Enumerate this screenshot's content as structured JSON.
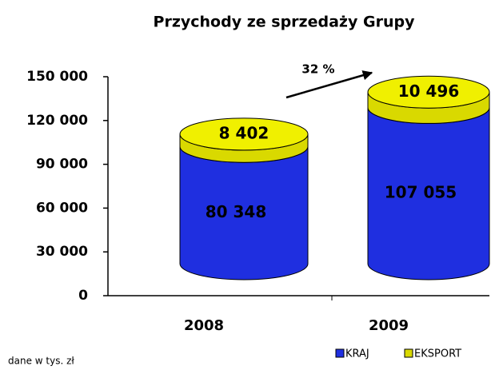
{
  "chart_data": {
    "type": "cylinder-stacked-bar",
    "title": "Przychody ze sprzedaży Grupy",
    "categories": [
      "2008",
      "2009"
    ],
    "series": [
      {
        "name": "KRAJ",
        "color": "#1f2fe0",
        "values": [
          80348,
          107055
        ],
        "value_labels": [
          "80 348",
          "107 055"
        ]
      },
      {
        "name": "EKSPORT",
        "color": "#d9d900",
        "values": [
          8402,
          10496
        ],
        "value_labels": [
          "8 402",
          "10 496"
        ]
      }
    ],
    "ylim": [
      0,
      150000
    ],
    "yticks": [
      {
        "value": 0,
        "label": "0"
      },
      {
        "value": 30000,
        "label": "30 000"
      },
      {
        "value": 60000,
        "label": "60 000"
      },
      {
        "value": 90000,
        "label": "90 000"
      },
      {
        "value": 120000,
        "label": "120 000"
      },
      {
        "value": 150000,
        "label": "150 000"
      }
    ],
    "annotation": "32 %",
    "note": "dane w tys. zł",
    "legend": "bottom-right"
  }
}
